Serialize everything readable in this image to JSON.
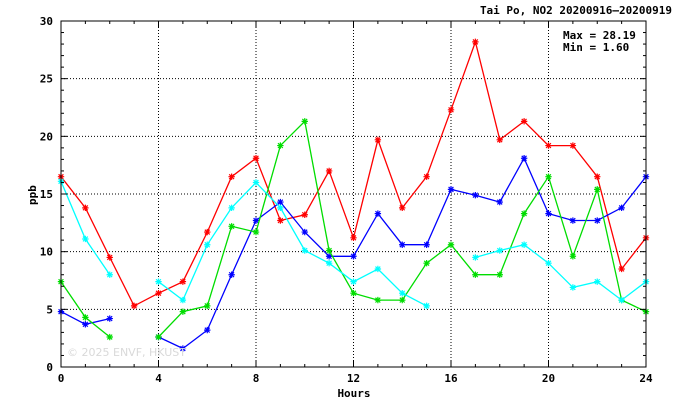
{
  "chart_data": {
    "type": "line",
    "title": "Tai Po, NO2 20200916–20200919",
    "xlabel": "Hours",
    "ylabel": "ppb",
    "xlim": [
      0,
      24
    ],
    "ylim": [
      0,
      30
    ],
    "x_ticks": [
      0,
      4,
      8,
      12,
      16,
      20,
      24
    ],
    "y_ticks": [
      0,
      5,
      10,
      15,
      20,
      25,
      30
    ],
    "grid": true,
    "stats": {
      "max": "Max = 28.19",
      "min": "Min =  1.60"
    },
    "watermark": "© 2025 ENVF, HKUST",
    "x": [
      0,
      1,
      2,
      3,
      4,
      5,
      6,
      7,
      8,
      9,
      10,
      11,
      12,
      13,
      14,
      15,
      16,
      17,
      18,
      19,
      20,
      21,
      22,
      23,
      24
    ],
    "series": [
      {
        "color": "#ff0000",
        "marker": "*",
        "values": [
          16.5,
          13.8,
          9.5,
          5.3,
          6.4,
          7.4,
          11.7,
          16.5,
          18.1,
          12.7,
          13.2,
          17.0,
          11.2,
          19.7,
          13.8,
          16.5,
          22.3,
          28.19,
          19.7,
          21.3,
          19.2,
          19.2,
          16.5,
          8.5,
          11.2
        ]
      },
      {
        "color": "#0000ff",
        "marker": "*",
        "values": [
          4.8,
          3.7,
          4.2,
          null,
          2.6,
          1.6,
          3.2,
          8.0,
          12.7,
          14.3,
          11.7,
          9.6,
          9.6,
          13.3,
          10.6,
          10.6,
          15.4,
          14.9,
          14.3,
          18.1,
          13.3,
          12.7,
          12.7,
          13.8,
          16.5
        ]
      },
      {
        "color": "#00dd00",
        "marker": "*",
        "values": [
          7.4,
          4.3,
          2.6,
          null,
          2.6,
          4.8,
          5.3,
          12.2,
          11.7,
          19.2,
          21.3,
          10.1,
          6.4,
          5.8,
          5.8,
          9.0,
          10.6,
          8.0,
          8.0,
          13.3,
          16.5,
          9.6,
          15.4,
          5.8,
          4.8
        ]
      },
      {
        "color": "#00ffff",
        "marker": "*",
        "values": [
          16.1,
          11.1,
          8.0,
          null,
          7.4,
          5.8,
          10.6,
          13.8,
          16.0,
          13.8,
          10.1,
          9.0,
          7.4,
          8.5,
          6.4,
          5.3,
          null,
          9.5,
          10.1,
          10.6,
          9.0,
          6.9,
          7.4,
          5.8,
          7.4
        ]
      }
    ]
  }
}
